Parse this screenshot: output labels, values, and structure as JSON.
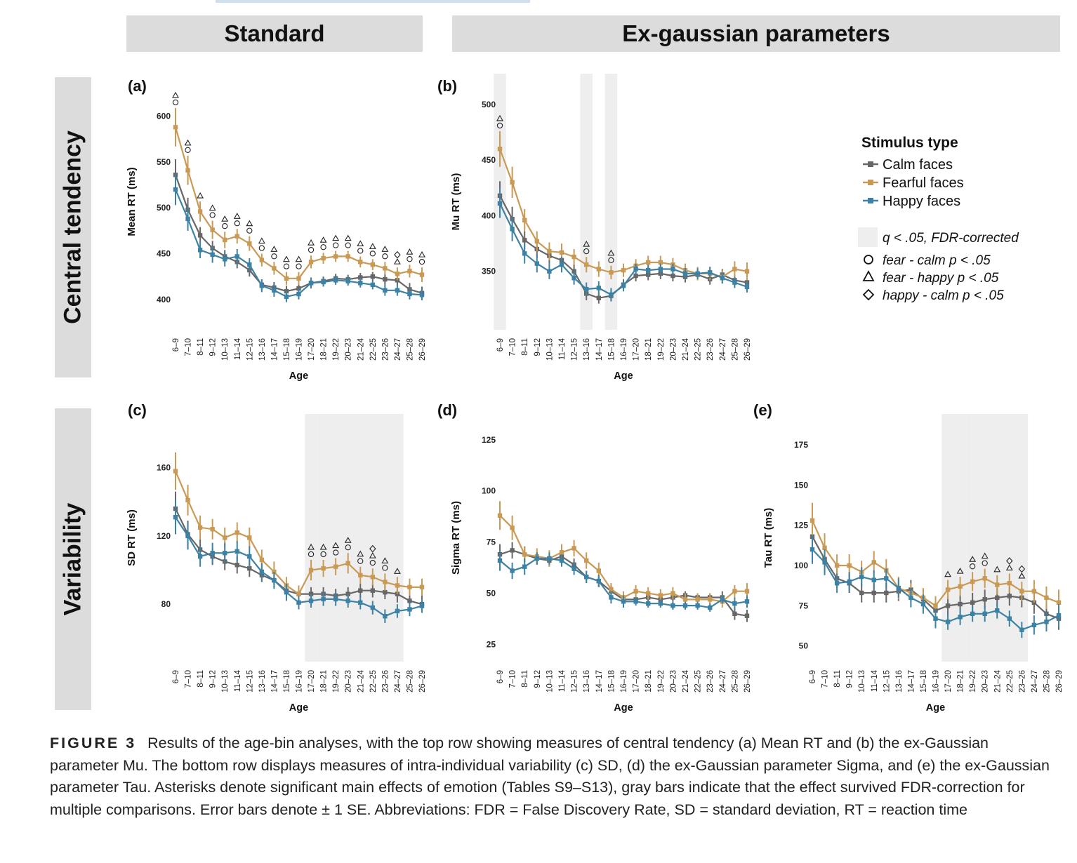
{
  "headers": {
    "standard": "Standard",
    "exgauss": "Ex-gaussian parameters"
  },
  "row_labels": {
    "central": "Central tendency",
    "variability": "Variability"
  },
  "colors": {
    "calm": "#676767",
    "fear": "#c99a55",
    "happy": "#3d82a4",
    "sig_band": "#eeeeee"
  },
  "legend": {
    "title": "Stimulus type",
    "series": [
      "Calm faces",
      "Fearful faces",
      "Happy faces"
    ],
    "fdr": "q < .05, FDR-corrected",
    "fear_calm": "fear - calm p < .05",
    "fear_happy": "fear - happy p < .05",
    "happy_calm": "happy - calm p < .05"
  },
  "ages": [
    "6–9",
    "7–10",
    "8–11",
    "9–12",
    "10–13",
    "11–14",
    "12–15",
    "13–16",
    "14–17",
    "15–18",
    "16–19",
    "17–20",
    "18–21",
    "19–22",
    "20–23",
    "21–24",
    "22–25",
    "23–26",
    "24–27",
    "25–28",
    "26–29"
  ],
  "chart_data": [
    {
      "id": "a",
      "label": "(a)",
      "type": "line",
      "xlabel": "Age",
      "ylabel": "Mean RT (ms)",
      "ylim": [
        370,
        625
      ],
      "yticks": [
        400,
        450,
        500,
        550,
        600
      ],
      "sig_bins": [],
      "series": [
        {
          "name": "Calm faces",
          "values": [
            536,
            498,
            470,
            456,
            447,
            441,
            432,
            416,
            413,
            409,
            412,
            418,
            420,
            423,
            422,
            424,
            425,
            422,
            421,
            411,
            407
          ],
          "se": [
            17,
            13,
            9,
            8,
            7,
            7,
            7,
            6,
            6,
            6,
            6,
            5,
            5,
            5,
            5,
            5,
            5,
            6,
            6,
            7,
            7
          ]
        },
        {
          "name": "Fearful faces",
          "values": [
            588,
            541,
            496,
            476,
            465,
            469,
            461,
            443,
            434,
            423,
            423,
            441,
            445,
            447,
            447,
            441,
            438,
            434,
            428,
            431,
            427
          ],
          "se": [
            21,
            16,
            11,
            10,
            9,
            8,
            8,
            7,
            7,
            7,
            7,
            7,
            6,
            6,
            6,
            6,
            6,
            7,
            7,
            7,
            8
          ]
        },
        {
          "name": "Happy faces",
          "values": [
            520,
            488,
            454,
            449,
            444,
            447,
            438,
            415,
            410,
            403,
            406,
            418,
            419,
            421,
            420,
            418,
            416,
            410,
            410,
            406,
            405
          ],
          "se": [
            17,
            13,
            9,
            9,
            8,
            8,
            7,
            7,
            7,
            6,
            6,
            6,
            5,
            5,
            5,
            5,
            5,
            6,
            6,
            6,
            6
          ]
        }
      ],
      "markers": [
        [
          0,
          "oΔ"
        ],
        [
          1,
          "oΔ"
        ],
        [
          2,
          "Δ"
        ],
        [
          3,
          "oΔ"
        ],
        [
          4,
          "oΔ"
        ],
        [
          5,
          "oΔ"
        ],
        [
          6,
          "oΔ"
        ],
        [
          7,
          "oΔ"
        ],
        [
          8,
          "oΔ"
        ],
        [
          9,
          "oΔ"
        ],
        [
          10,
          "oΔ"
        ],
        [
          11,
          "oΔ"
        ],
        [
          12,
          "oΔ"
        ],
        [
          13,
          "oΔ"
        ],
        [
          14,
          "oΔ"
        ],
        [
          15,
          "oΔ"
        ],
        [
          16,
          "oΔ"
        ],
        [
          17,
          "oΔ"
        ],
        [
          18,
          "Δ◇"
        ],
        [
          19,
          "oΔ"
        ],
        [
          20,
          "oΔ"
        ]
      ]
    },
    {
      "id": "b",
      "label": "(b)",
      "type": "line",
      "xlabel": "Age",
      "ylabel": "Mu RT (ms)",
      "ylim": [
        300,
        510
      ],
      "yticks": [
        350,
        400,
        450,
        500
      ],
      "sig_bins": [
        0,
        7,
        9
      ],
      "series": [
        {
          "name": "Calm faces",
          "values": [
            418,
            397,
            378,
            370,
            364,
            360,
            350,
            330,
            326,
            328,
            338,
            346,
            347,
            348,
            346,
            345,
            347,
            343,
            347,
            342,
            340
          ],
          "se": [
            13,
            11,
            8,
            8,
            7,
            7,
            6,
            6,
            5,
            5,
            5,
            5,
            5,
            5,
            5,
            5,
            5,
            5,
            5,
            5,
            6
          ]
        },
        {
          "name": "Fearful faces",
          "values": [
            460,
            430,
            396,
            377,
            368,
            367,
            363,
            356,
            352,
            349,
            351,
            355,
            358,
            358,
            356,
            351,
            348,
            348,
            345,
            352,
            350
          ],
          "se": [
            16,
            14,
            10,
            9,
            8,
            8,
            7,
            7,
            7,
            6,
            6,
            6,
            6,
            6,
            6,
            6,
            6,
            6,
            6,
            7,
            8
          ]
        },
        {
          "name": "Happy faces",
          "values": [
            411,
            388,
            366,
            357,
            350,
            356,
            344,
            334,
            335,
            329,
            337,
            352,
            351,
            352,
            352,
            348,
            348,
            349,
            344,
            340,
            336
          ],
          "se": [
            13,
            11,
            9,
            8,
            7,
            7,
            6,
            6,
            6,
            6,
            5,
            5,
            5,
            5,
            5,
            5,
            5,
            5,
            5,
            5,
            5
          ]
        }
      ],
      "markers": [
        [
          0,
          "oΔ"
        ],
        [
          7,
          "oΔ"
        ],
        [
          9,
          "oΔ"
        ]
      ]
    },
    {
      "id": "c",
      "label": "(c)",
      "type": "line",
      "xlabel": "Age",
      "ylabel": "SD RT (ms)",
      "ylim": [
        48,
        180
      ],
      "yticks": [
        80,
        120,
        160
      ],
      "sig_bins": [
        11,
        12,
        13,
        14,
        15,
        16,
        17,
        18
      ],
      "series": [
        {
          "name": "Calm faces",
          "values": [
            136,
            121,
            112,
            108,
            105,
            103,
            101,
            97,
            94,
            88,
            86,
            86,
            86,
            85,
            86,
            88,
            88,
            87,
            86,
            82,
            80
          ],
          "se": [
            10,
            8,
            6,
            5,
            5,
            5,
            5,
            4,
            4,
            4,
            4,
            4,
            4,
            4,
            4,
            4,
            4,
            4,
            5,
            5,
            5
          ]
        },
        {
          "name": "Fearful faces",
          "values": [
            158,
            141,
            125,
            124,
            119,
            122,
            119,
            106,
            99,
            91,
            86,
            100,
            101,
            102,
            104,
            97,
            96,
            93,
            91,
            90,
            90
          ],
          "se": [
            11,
            9,
            7,
            6,
            6,
            6,
            6,
            6,
            6,
            5,
            5,
            6,
            5,
            5,
            6,
            5,
            5,
            5,
            5,
            5,
            5
          ]
        },
        {
          "name": "Happy faces",
          "values": [
            131,
            120,
            108,
            110,
            110,
            111,
            108,
            99,
            94,
            87,
            81,
            82,
            83,
            83,
            82,
            81,
            78,
            73,
            76,
            77,
            79
          ],
          "se": [
            10,
            8,
            6,
            6,
            6,
            6,
            6,
            5,
            5,
            5,
            4,
            4,
            4,
            4,
            4,
            4,
            4,
            4,
            4,
            4,
            4
          ]
        }
      ],
      "markers": [
        [
          11,
          "oΔ"
        ],
        [
          12,
          "oΔ"
        ],
        [
          13,
          "oΔ"
        ],
        [
          14,
          "oΔ"
        ],
        [
          15,
          "oΔ"
        ],
        [
          16,
          "oΔ◇"
        ],
        [
          17,
          "oΔ"
        ],
        [
          18,
          "Δ"
        ]
      ]
    },
    {
      "id": "d",
      "label": "(d)",
      "type": "line",
      "xlabel": "Age",
      "ylabel": "Sigma RT (ms)",
      "ylim": [
        18,
        128
      ],
      "yticks": [
        25,
        50,
        75,
        100,
        125
      ],
      "sig_bins": [],
      "series": [
        {
          "name": "Calm faces",
          "values": [
            69,
            71,
            69,
            67,
            66,
            68,
            64,
            58,
            56,
            51,
            47,
            47,
            48,
            47,
            48,
            49,
            48,
            48,
            48,
            40,
            39
          ],
          "se": [
            5,
            4,
            4,
            3,
            3,
            3,
            3,
            3,
            3,
            3,
            3,
            2,
            2,
            2,
            2,
            2,
            2,
            2,
            3,
            3,
            3
          ]
        },
        {
          "name": "Fearful faces",
          "values": [
            88,
            82,
            69,
            68,
            67,
            70,
            72,
            66,
            61,
            52,
            48,
            51,
            50,
            49,
            50,
            47,
            47,
            47,
            46,
            51,
            51
          ],
          "se": [
            7,
            6,
            4,
            4,
            4,
            4,
            4,
            4,
            4,
            3,
            3,
            3,
            3,
            3,
            3,
            3,
            3,
            3,
            3,
            3,
            4
          ]
        },
        {
          "name": "Happy faces",
          "values": [
            66,
            61,
            63,
            67,
            67,
            66,
            62,
            58,
            56,
            48,
            46,
            46,
            45,
            45,
            44,
            44,
            44,
            43,
            47,
            45,
            46
          ],
          "se": [
            5,
            4,
            4,
            3,
            3,
            3,
            3,
            3,
            3,
            3,
            3,
            2,
            2,
            2,
            2,
            2,
            2,
            2,
            2,
            3,
            3
          ]
        }
      ],
      "markers": []
    },
    {
      "id": "e",
      "label": "(e)",
      "type": "line",
      "xlabel": "Age",
      "ylabel": "Tau RT (ms)",
      "ylim": [
        42,
        182
      ],
      "yticks": [
        50,
        75,
        100,
        125,
        150,
        175
      ],
      "sig_bins": [
        11,
        12,
        13,
        14,
        15,
        16,
        17
      ],
      "series": [
        {
          "name": "Calm faces",
          "values": [
            118,
            104,
            92,
            89,
            83,
            83,
            83,
            84,
            85,
            79,
            72,
            75,
            76,
            77,
            79,
            80,
            81,
            80,
            77,
            70,
            67
          ],
          "se": [
            10,
            8,
            6,
            6,
            6,
            6,
            6,
            6,
            6,
            6,
            6,
            6,
            6,
            6,
            6,
            6,
            6,
            6,
            7,
            7,
            7
          ]
        },
        {
          "name": "Fearful faces",
          "values": [
            128,
            111,
            100,
            100,
            96,
            102,
            97,
            86,
            83,
            80,
            75,
            85,
            87,
            90,
            92,
            88,
            89,
            84,
            84,
            80,
            77
          ],
          "se": [
            11,
            9,
            7,
            7,
            7,
            7,
            7,
            7,
            6,
            6,
            6,
            6,
            6,
            6,
            6,
            6,
            6,
            6,
            7,
            7,
            8
          ]
        },
        {
          "name": "Happy faces",
          "values": [
            110,
            102,
            89,
            90,
            93,
            91,
            92,
            86,
            80,
            76,
            67,
            65,
            68,
            70,
            70,
            72,
            67,
            60,
            63,
            65,
            69
          ],
          "se": [
            9,
            8,
            6,
            6,
            6,
            6,
            6,
            6,
            6,
            6,
            6,
            5,
            5,
            5,
            5,
            5,
            5,
            5,
            6,
            6,
            7
          ]
        }
      ],
      "markers": [
        [
          11,
          "Δ"
        ],
        [
          12,
          "Δ"
        ],
        [
          13,
          "oΔ"
        ],
        [
          14,
          "oΔ"
        ],
        [
          15,
          "Δ"
        ],
        [
          16,
          "Δ◇"
        ],
        [
          17,
          "Δ◇"
        ]
      ]
    }
  ],
  "caption": {
    "label": "FIGURE 3",
    "text": "Results of the age-bin analyses, with the top row showing measures of central tendency (a) Mean RT and (b) the ex-Gaussian parameter Mu. The bottom row displays measures of intra-individual variability (c) SD, (d) the ex-Gaussian parameter Sigma, and (e) the ex-Gaussian parameter Tau. Asterisks denote significant main effects of emotion (Tables S9–S13), gray bars indicate that the effect survived FDR-correction for multiple comparisons. Error bars denote ± 1 SE. Abbreviations: FDR = False Discovery Rate, SD = standard deviation, RT = reaction time"
  }
}
